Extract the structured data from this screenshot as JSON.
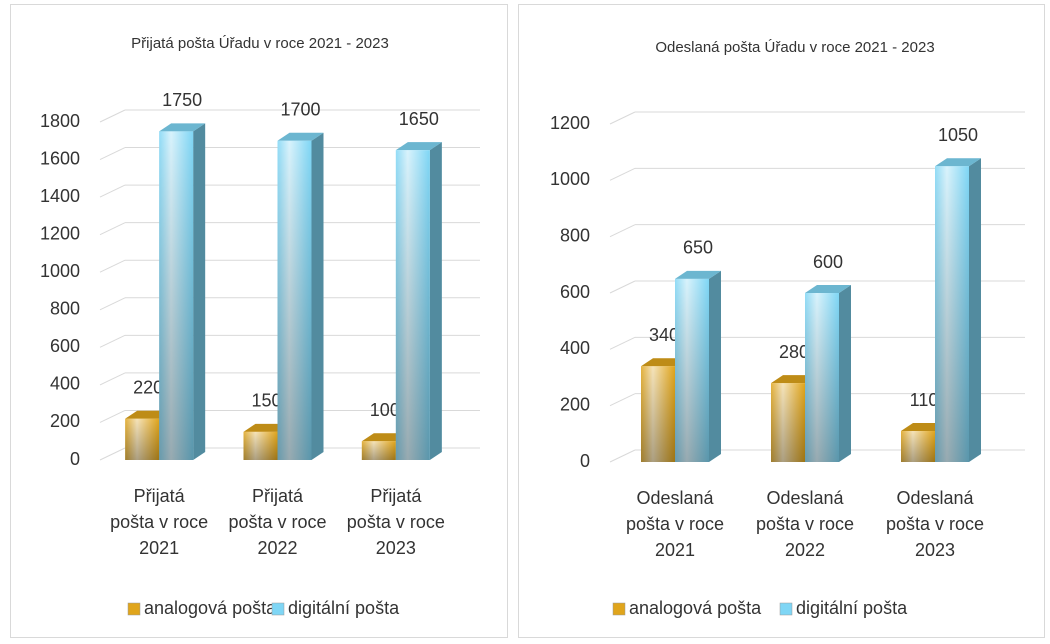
{
  "chart_data": [
    {
      "type": "bar3d",
      "title": "Přijatá pošta Úřadu v roce 2021 - 2023",
      "categories": [
        "Přijatá pošta v roce 2021",
        "Přijatá pošta v roce 2022",
        "Přijatá pošta v roce 2023"
      ],
      "series": [
        {
          "name": "analogová pošta",
          "color": "#e0a51c",
          "values": [
            220,
            150,
            100
          ]
        },
        {
          "name": "digitální pošta",
          "color": "#7fd6f5",
          "values": [
            1750,
            1700,
            1650
          ]
        }
      ],
      "ylim": [
        0,
        1800
      ],
      "yticks": [
        0,
        200,
        400,
        600,
        800,
        1000,
        1200,
        1400,
        1600,
        1800
      ],
      "grid": true,
      "legend": "bottom"
    },
    {
      "type": "bar3d",
      "title": "Odeslaná pošta Úřadu v roce 2021 - 2023",
      "categories": [
        "Odeslaná pošta v roce 2021",
        "Odeslaná pošta v roce 2022",
        "Odeslaná pošta v roce 2023"
      ],
      "series": [
        {
          "name": "analogová pošta",
          "color": "#e0a51c",
          "values": [
            340,
            280,
            110
          ]
        },
        {
          "name": "digitální pošta",
          "color": "#7fd6f5",
          "values": [
            650,
            600,
            1050
          ]
        }
      ],
      "ylim": [
        0,
        1200
      ],
      "yticks": [
        0,
        200,
        400,
        600,
        800,
        1000,
        1200
      ],
      "grid": true,
      "legend": "bottom"
    }
  ]
}
